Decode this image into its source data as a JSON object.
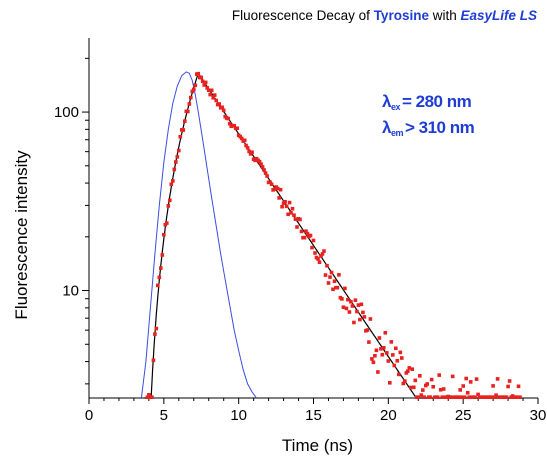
{
  "chart_data": {
    "type": "scatter",
    "title_parts": [
      "Fluorescence Decay of ",
      "Tyrosine",
      " with ",
      "EasyLife LS"
    ],
    "xlabel": "Time (ns)",
    "ylabel": "Fluorescence intensity",
    "xlim": [
      0,
      30
    ],
    "ylim": [
      2.5,
      260
    ],
    "yscale": "log",
    "x_ticks": [
      "0",
      "5",
      "10",
      "15",
      "20",
      "25",
      "30"
    ],
    "y_ticks": [
      {
        "value": 10,
        "label": "10"
      },
      {
        "value": 100,
        "label": "100"
      }
    ],
    "annotation": {
      "line1": {
        "symbol": "λ",
        "sub": "ex",
        "text": "= 280 nm"
      },
      "line2": {
        "symbol": "λ",
        "sub": "em",
        "text": "> 310 nm"
      }
    },
    "colors": {
      "irf": "#3a4ee0",
      "decay_points": "#e8221e",
      "fit": "#000000",
      "title_accent": "#1f3dd6"
    },
    "series": [
      {
        "role": "instrument-response",
        "style": "thin-line",
        "x": [
          3.5,
          3.8,
          4.1,
          4.4,
          4.7,
          5.0,
          5.3,
          5.6,
          5.9,
          6.2,
          6.5,
          6.7,
          6.9,
          7.1,
          7.3,
          7.6,
          7.9,
          8.2,
          8.5,
          8.8,
          9.1,
          9.4,
          9.7,
          10.0,
          10.3,
          10.6,
          10.9,
          11.2
        ],
        "y": [
          2.5,
          4.0,
          8.0,
          16.0,
          30.0,
          52.0,
          80.0,
          112.0,
          140.0,
          160.0,
          168.0,
          165.0,
          150.0,
          125.0,
          100.0,
          70.0,
          48.0,
          33.0,
          23.0,
          16.0,
          11.5,
          8.3,
          6.0,
          4.6,
          3.6,
          3.0,
          2.7,
          2.5
        ]
      },
      {
        "role": "decay-data",
        "style": "markers",
        "x_start": 3.9,
        "x_step": 0.1,
        "y_model": {
          "amplitude": 165,
          "rise_ns": 0.8,
          "onset_ns": 3.6,
          "lifetimes_ns": [
            3.5,
            2.2
          ],
          "weights": [
            0.97,
            0.03
          ],
          "background": 2.5
        },
        "x_end": 28.8
      },
      {
        "role": "fit",
        "style": "line",
        "x_start": 3.7,
        "x_end": 28.8
      }
    ]
  }
}
